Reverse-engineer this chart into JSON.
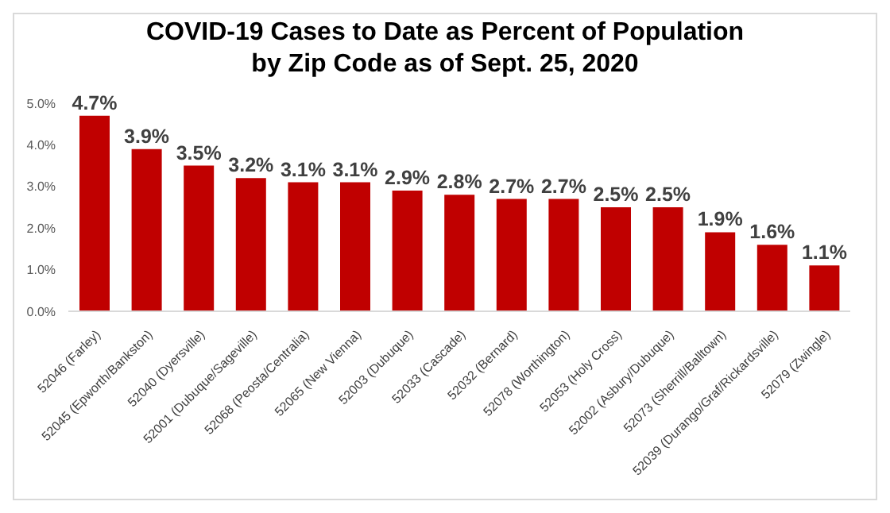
{
  "chart_data": {
    "type": "bar",
    "title": "COVID-19 Cases to Date as Percent of Population\nby Zip Code as of Sept. 25, 2020",
    "categories": [
      "52046 (Farley)",
      "52045 (Epworth/Bankston)",
      "52040 (Dyersville)",
      "52001 (Dubuque/Sageville)",
      "52068 (Peosta/Centralia)",
      "52065 (New Vienna)",
      "52003 (Dubuque)",
      "52033 (Cascade)",
      "52032 (Bernard)",
      "52078 (Worthington)",
      "52053 (Holy Cross)",
      "52002 (Asbury/Dubuque)",
      "52073 (Sherrill/Balltown)",
      "52039 (Durango/Graf/Rickardsville)",
      "52079 (Zwingle)"
    ],
    "values": [
      4.7,
      3.9,
      3.5,
      3.2,
      3.1,
      3.1,
      2.9,
      2.8,
      2.7,
      2.7,
      2.5,
      2.5,
      1.9,
      1.6,
      1.1
    ],
    "value_labels": [
      "4.7%",
      "3.9%",
      "3.5%",
      "3.2%",
      "3.1%",
      "3.1%",
      "2.9%",
      "2.8%",
      "2.7%",
      "2.7%",
      "2.5%",
      "2.5%",
      "1.9%",
      "1.6%",
      "1.1%"
    ],
    "color": "#c00000",
    "ylim": [
      0,
      5
    ],
    "yticks": [
      {
        "value": 0,
        "label": "0.0%"
      },
      {
        "value": 1,
        "label": "1.0%"
      },
      {
        "value": 2,
        "label": "2.0%"
      },
      {
        "value": 3,
        "label": "3.0%"
      },
      {
        "value": 4,
        "label": "4.0%"
      },
      {
        "value": 5,
        "label": "5.0%"
      }
    ],
    "grid": false,
    "legend": false
  }
}
